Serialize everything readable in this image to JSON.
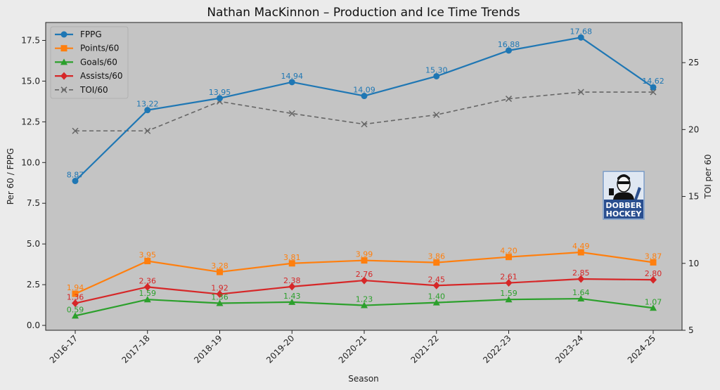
{
  "chart_data": {
    "type": "line",
    "title": "Nathan MacKinnon – Production and Ice Time Trends",
    "xlabel": "Season",
    "ylabel": "Per 60 / FPPG",
    "y2label": "TOI per 60",
    "ylim": [
      -0.3,
      18.6
    ],
    "y2lim": [
      5,
      28
    ],
    "yticks": [
      0.0,
      2.5,
      5.0,
      7.5,
      10.0,
      12.5,
      15.0,
      17.5
    ],
    "y2ticks": [
      5,
      10,
      15,
      20,
      25
    ],
    "grid": false,
    "legend": "top-left",
    "categories": [
      "2016-17",
      "2017-18",
      "2018-19",
      "2019-20",
      "2020-21",
      "2021-22",
      "2022-23",
      "2023-24",
      "2024-25"
    ],
    "series": [
      {
        "name": "FPPG",
        "axis": "left",
        "color": "#1f77b4",
        "marker": "circle",
        "dashed": false,
        "labels": true,
        "values": [
          8.87,
          13.22,
          13.95,
          14.94,
          14.09,
          15.3,
          16.88,
          17.68,
          14.62
        ]
      },
      {
        "name": "Points/60",
        "axis": "left",
        "color": "#ff7f0e",
        "marker": "square",
        "dashed": false,
        "labels": true,
        "values": [
          1.94,
          3.95,
          3.28,
          3.81,
          3.99,
          3.86,
          4.2,
          4.49,
          3.87
        ]
      },
      {
        "name": "Goals/60",
        "axis": "left",
        "color": "#2ca02c",
        "marker": "triangle",
        "dashed": false,
        "labels": true,
        "values": [
          0.59,
          1.59,
          1.36,
          1.43,
          1.23,
          1.4,
          1.59,
          1.64,
          1.07
        ]
      },
      {
        "name": "Assists/60",
        "axis": "left",
        "color": "#d62728",
        "marker": "diamond",
        "dashed": false,
        "labels": true,
        "values": [
          1.36,
          2.36,
          1.92,
          2.38,
          2.76,
          2.45,
          2.61,
          2.85,
          2.8
        ]
      },
      {
        "name": "TOI/60",
        "axis": "right",
        "color": "#666666",
        "marker": "x",
        "dashed": true,
        "labels": false,
        "values": [
          19.9,
          19.9,
          22.1,
          21.2,
          20.4,
          21.1,
          22.3,
          22.8,
          22.8
        ]
      }
    ]
  },
  "logo": {
    "line1": "DOBBER",
    "line2": "HOCKEY"
  }
}
